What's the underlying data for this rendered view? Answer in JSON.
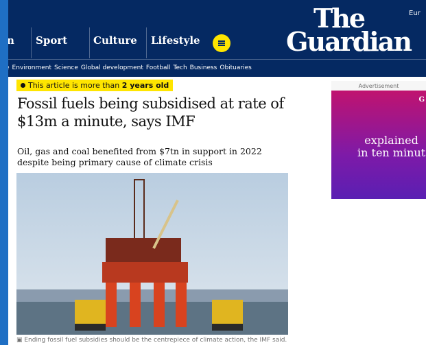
{
  "nav": {
    "items": [
      "n",
      "Sport",
      "Culture",
      "Lifestyle"
    ],
    "edition": "Eur",
    "logo": [
      "The",
      "Guardian"
    ]
  },
  "subnav": [
    "e",
    "Environment",
    "Science",
    "Global development",
    "Football",
    "Tech",
    "Business",
    "Obituaries"
  ],
  "article": {
    "badge": [
      "This article is more than ",
      "2 years old"
    ],
    "headline": "Fossil fuels being subsidised at rate of $13m a minute, says IMF",
    "standfirst": "Oil, gas and coal benefited from $7tn in support in 2022 despite being primary cause of climate crisis",
    "caption": "Ending fossil fuel subsidies should be the centrepiece of climate action, the IMF said."
  },
  "ad": {
    "label": "Advertisement",
    "logo": "G",
    "text": [
      "explained",
      "in ten minut"
    ]
  }
}
